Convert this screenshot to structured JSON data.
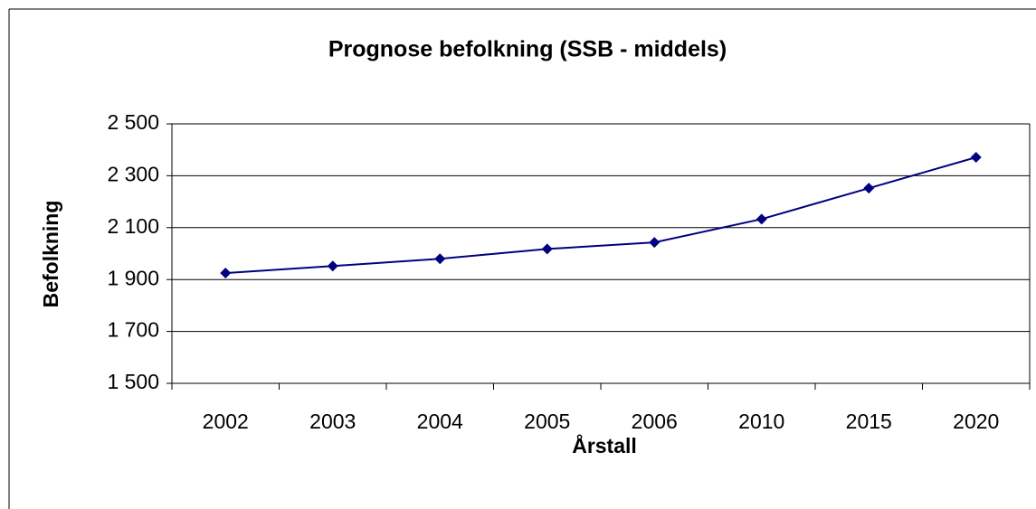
{
  "chart_data": {
    "type": "line",
    "title": "Prognose befolkning (SSB - middels)",
    "x_label": "Årstall",
    "y_label": "Befolkning",
    "categories": [
      "2002",
      "2003",
      "2004",
      "2005",
      "2006",
      "2010",
      "2015",
      "2020"
    ],
    "series": [
      {
        "name": "Befolkning",
        "color": "#000080",
        "values": [
          1925,
          1952,
          1980,
          2018,
          2043,
          2133,
          2252,
          2371
        ]
      }
    ],
    "ylim": [
      1500,
      2500
    ],
    "yticks": [
      {
        "value": 1500,
        "label": "1 500"
      },
      {
        "value": 1700,
        "label": "1 700"
      },
      {
        "value": 1900,
        "label": "1 900"
      },
      {
        "value": 2100,
        "label": "2 100"
      },
      {
        "value": 2300,
        "label": "2 300"
      },
      {
        "value": 2500,
        "label": "2 500"
      }
    ],
    "grid": true
  }
}
